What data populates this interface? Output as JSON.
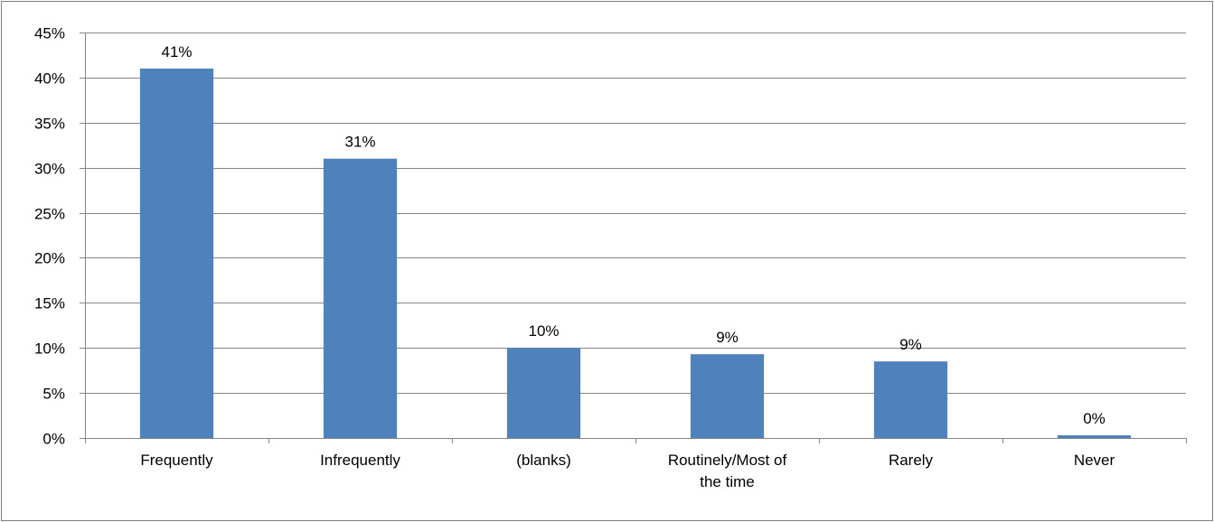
{
  "chart_data": {
    "type": "bar",
    "categories": [
      "Frequently",
      "Infrequently",
      "(blanks)",
      "Routinely/Most of the time",
      "Rarely",
      "Never"
    ],
    "category_label_lines": [
      [
        "Frequently"
      ],
      [
        "Infrequently"
      ],
      [
        "(blanks)"
      ],
      [
        "Routinely/Most of",
        "the time"
      ],
      [
        "Rarely"
      ],
      [
        "Never"
      ]
    ],
    "values": [
      0.41,
      0.31,
      0.1,
      0.093,
      0.085,
      0.003
    ],
    "data_labels": [
      "41%",
      "31%",
      "10%",
      "9%",
      "9%",
      "0%"
    ],
    "title": "",
    "xlabel": "",
    "ylabel": "",
    "ylim": [
      0,
      0.45
    ],
    "yticks": [
      0,
      0.05,
      0.1,
      0.15,
      0.2,
      0.25,
      0.3,
      0.35,
      0.4,
      0.45
    ],
    "ytick_labels": [
      "0%",
      "5%",
      "10%",
      "15%",
      "20%",
      "25%",
      "30%",
      "35%",
      "40%",
      "45%"
    ],
    "grid": true,
    "legend": "none",
    "colors": {
      "bar": "#4f81bd",
      "grid": "#868686",
      "axis": "#868686",
      "frame": "#7f7f7f"
    }
  }
}
